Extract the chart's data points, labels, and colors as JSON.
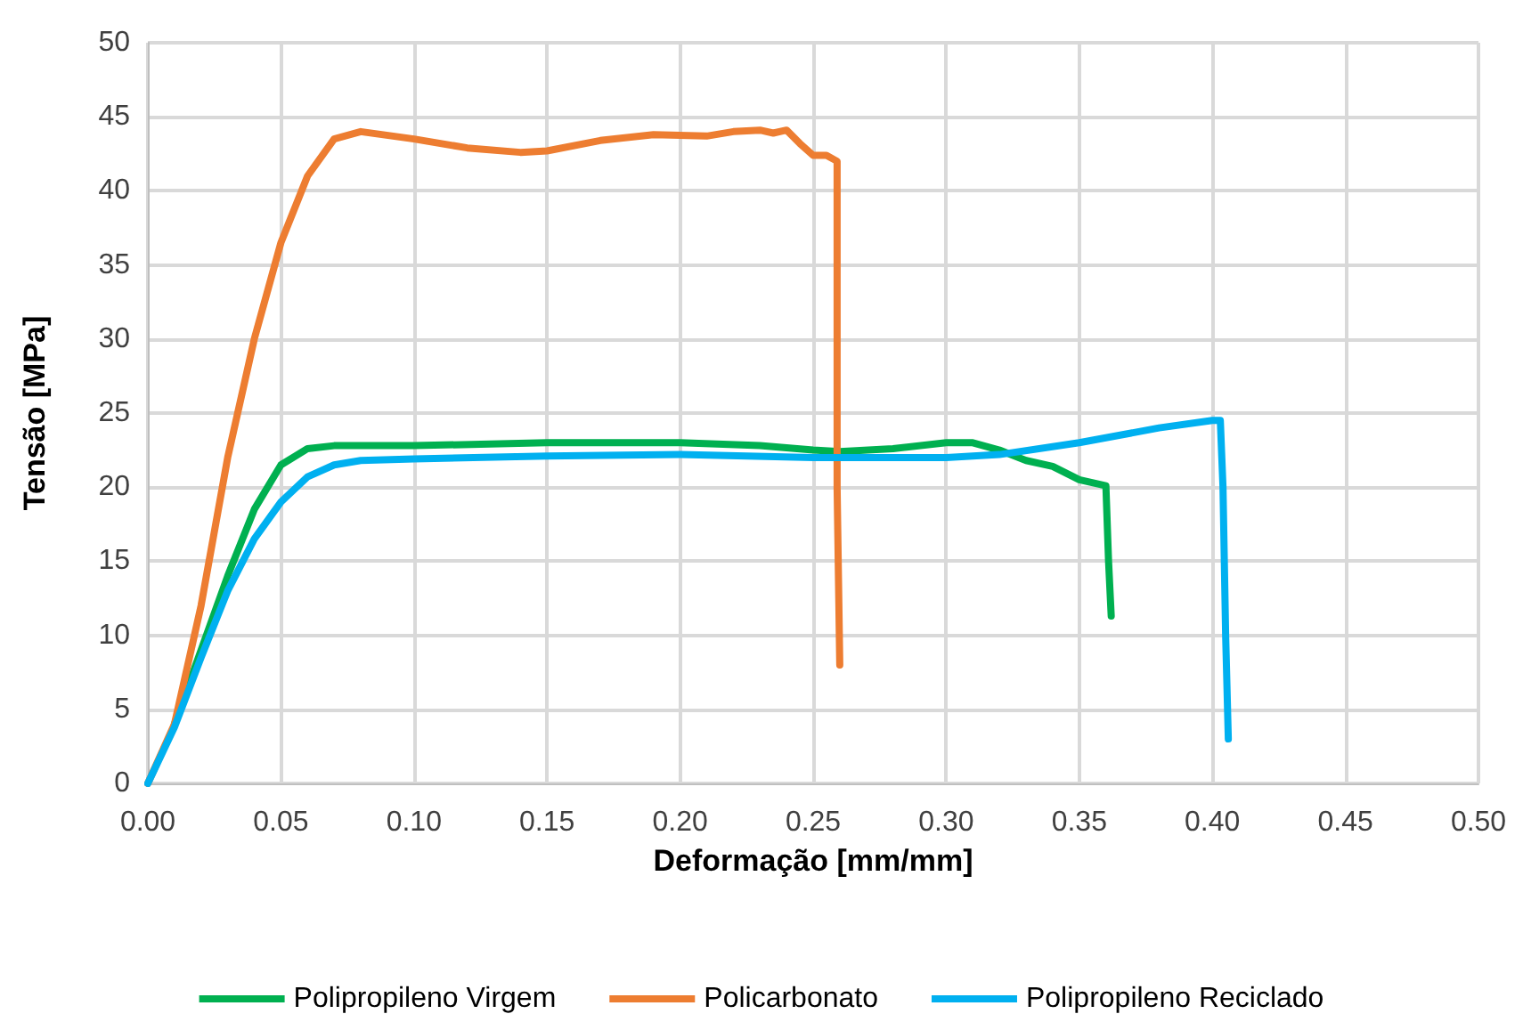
{
  "chart_data": {
    "type": "line",
    "xlabel": "Deformação [mm/mm]",
    "ylabel": "Tensão [MPa]",
    "xlim": [
      0,
      0.5
    ],
    "xticks": [
      {
        "value": 0,
        "label": "0.00"
      },
      {
        "value": 0.05,
        "label": "0.05"
      },
      {
        "value": 0.1,
        "label": "0.10"
      },
      {
        "value": 0.15,
        "label": "0.15"
      },
      {
        "value": 0.2,
        "label": "0.20"
      },
      {
        "value": 0.25,
        "label": "0.25"
      },
      {
        "value": 0.3,
        "label": "0.30"
      },
      {
        "value": 0.35,
        "label": "0.35"
      },
      {
        "value": 0.4,
        "label": "0.40"
      },
      {
        "value": 0.45,
        "label": "0.45"
      },
      {
        "value": 0.5,
        "label": "0.50"
      }
    ],
    "ylim": [
      0,
      50
    ],
    "yticks": [
      0,
      5,
      10,
      15,
      20,
      25,
      30,
      35,
      40,
      45,
      50
    ],
    "grid": true,
    "legend": "bottom",
    "marker": "none",
    "line_style": "solid",
    "series": [
      {
        "name": "Polipropileno Virgem",
        "color": "#00b050",
        "x": [
          0.01,
          0.02,
          0.03,
          0.04,
          0.05,
          0.06,
          0.07,
          0.1,
          0.15,
          0.2,
          0.23,
          0.25,
          0.26,
          0.28,
          0.3,
          0.31,
          0.32,
          0.33,
          0.34,
          0.35,
          0.36,
          0.361,
          0.362
        ],
        "values": [
          4,
          9,
          14,
          18.5,
          21.5,
          22.6,
          22.8,
          22.8,
          23,
          23,
          22.8,
          22.5,
          22.4,
          22.6,
          23,
          23,
          22.5,
          21.8,
          21.4,
          20.5,
          20.1,
          15,
          11.3
        ]
      },
      {
        "name": "Policarbonato",
        "color": "#ed7d31",
        "x": [
          0,
          0.01,
          0.02,
          0.03,
          0.04,
          0.05,
          0.06,
          0.07,
          0.08,
          0.1,
          0.12,
          0.14,
          0.15,
          0.17,
          0.19,
          0.21,
          0.22,
          0.23,
          0.235,
          0.24,
          0.245,
          0.25,
          0.255,
          0.259,
          0.259,
          0.26
        ],
        "values": [
          0,
          4,
          12,
          22,
          30,
          36.5,
          41,
          43.5,
          44,
          43.5,
          42.9,
          42.6,
          42.7,
          43.4,
          43.8,
          43.7,
          44,
          44.1,
          43.9,
          44.1,
          43.2,
          42.4,
          42.4,
          42,
          20,
          8
        ]
      },
      {
        "name": "Polipropileno Reciclado",
        "color": "#00b0f0",
        "x": [
          0,
          0.01,
          0.02,
          0.03,
          0.04,
          0.05,
          0.06,
          0.07,
          0.08,
          0.1,
          0.15,
          0.2,
          0.25,
          0.3,
          0.32,
          0.35,
          0.38,
          0.4,
          0.403,
          0.404,
          0.405,
          0.406
        ],
        "values": [
          0,
          3.8,
          8.5,
          13,
          16.5,
          19,
          20.7,
          21.5,
          21.8,
          21.9,
          22.1,
          22.2,
          22,
          22,
          22.2,
          23,
          24,
          24.5,
          24.5,
          20,
          10,
          3
        ]
      }
    ]
  }
}
